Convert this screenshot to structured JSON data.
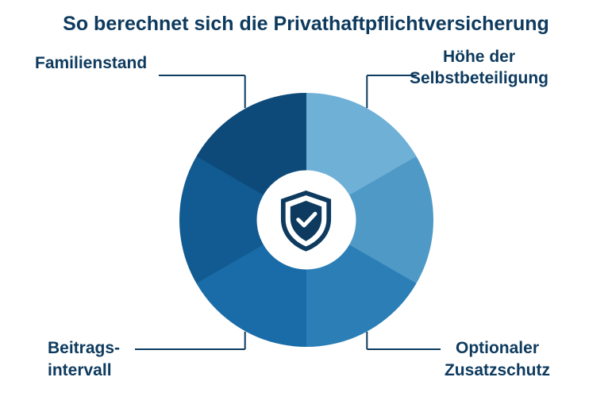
{
  "title": {
    "text": "So berechnet sich die Privathaftpflichtversicherung",
    "color": "#0d3a5e",
    "fontsize": 25
  },
  "chart": {
    "type": "donut",
    "outer_diameter": 320,
    "hole_diameter": 125,
    "center_bg": "#ffffff",
    "segments": [
      {
        "start": -90,
        "end": -30,
        "color": "#6fb0d6"
      },
      {
        "start": -30,
        "end": 30,
        "color": "#4f99c6"
      },
      {
        "start": 30,
        "end": 90,
        "color": "#2b7fb6"
      },
      {
        "start": 90,
        "end": 150,
        "color": "#1a6ca8"
      },
      {
        "start": 150,
        "end": 210,
        "color": "#115b92"
      },
      {
        "start": 210,
        "end": 270,
        "color": "#0d4a7a"
      }
    ],
    "icon": {
      "name": "shield-check",
      "stroke": "#0d3a5e",
      "fill": "#ffffff",
      "size": 82
    }
  },
  "labels": {
    "color": "#0d3a5e",
    "fontsize": 21,
    "connector_color": "#0d3a5e",
    "items": [
      {
        "id": "familienstand",
        "line1": "Familienstand",
        "line2": "",
        "pos": "top-left"
      },
      {
        "id": "selbstbeteiligung",
        "line1": "Höhe der",
        "line2": "Selbstbeteiligung",
        "pos": "top-right"
      },
      {
        "id": "zusatzschutz",
        "line1": "Optionaler",
        "line2": "Zusatzschutz",
        "pos": "bottom-right"
      },
      {
        "id": "beitragsintervall",
        "line1": "Beitrags-",
        "line2": "intervall",
        "pos": "bottom-left"
      }
    ]
  }
}
